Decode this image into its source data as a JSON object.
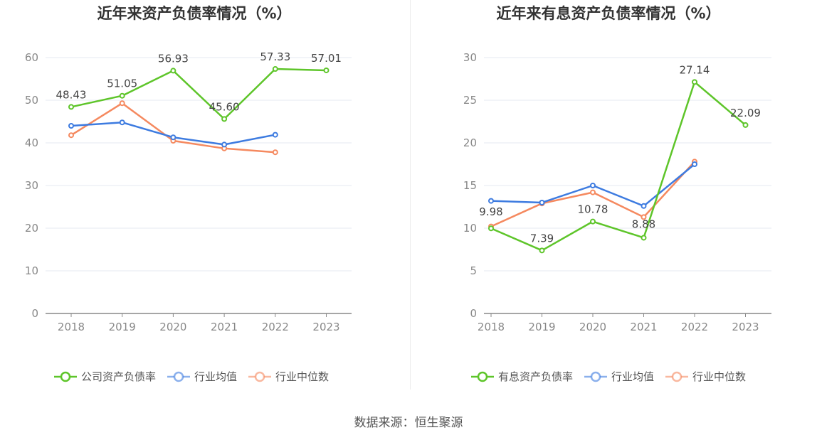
{
  "colors": {
    "company": "#5ec52a",
    "avg": "#3d7be0",
    "median": "#f5895f",
    "grid": "#e6e9f0",
    "axis": "#888888"
  },
  "source": "数据来源：恒生聚源",
  "chart_data": [
    {
      "type": "line",
      "title": "近年来资产负债率情况（%）",
      "categories": [
        "2018",
        "2019",
        "2020",
        "2021",
        "2022",
        "2023"
      ],
      "ylim": [
        0,
        60
      ],
      "yticks": [
        "0",
        "10",
        "20",
        "30",
        "40",
        "50",
        "60"
      ],
      "series": [
        {
          "name": "公司资产负债率",
          "key": "company",
          "values": [
            48.43,
            51.05,
            56.93,
            45.6,
            57.33,
            57.01
          ],
          "labels": [
            "48.43",
            "51.05",
            "56.93",
            "45.60",
            "57.33",
            "57.01"
          ]
        },
        {
          "name": "行业均值",
          "key": "avg",
          "values": [
            44.0,
            44.8,
            41.3,
            39.6,
            41.9,
            null
          ]
        },
        {
          "name": "行业中位数",
          "key": "median",
          "values": [
            41.8,
            49.3,
            40.5,
            38.7,
            37.8,
            null
          ]
        }
      ]
    },
    {
      "type": "line",
      "title": "近年来有息资产负债率情况（%）",
      "categories": [
        "2018",
        "2019",
        "2020",
        "2021",
        "2022",
        "2023"
      ],
      "ylim": [
        0,
        30
      ],
      "yticks": [
        "0",
        "5",
        "10",
        "15",
        "20",
        "25",
        "30"
      ],
      "series": [
        {
          "name": "有息资产负债率",
          "key": "company",
          "values": [
            9.98,
            7.39,
            10.78,
            8.88,
            27.14,
            22.09
          ],
          "labels": [
            "9.98",
            "7.39",
            "10.78",
            "8.88",
            "27.14",
            "22.09"
          ]
        },
        {
          "name": "行业均值",
          "key": "avg",
          "values": [
            13.2,
            13.0,
            15.0,
            12.6,
            17.5,
            null
          ]
        },
        {
          "name": "行业中位数",
          "key": "median",
          "values": [
            10.2,
            12.9,
            14.2,
            11.3,
            17.8,
            null
          ]
        }
      ]
    }
  ]
}
